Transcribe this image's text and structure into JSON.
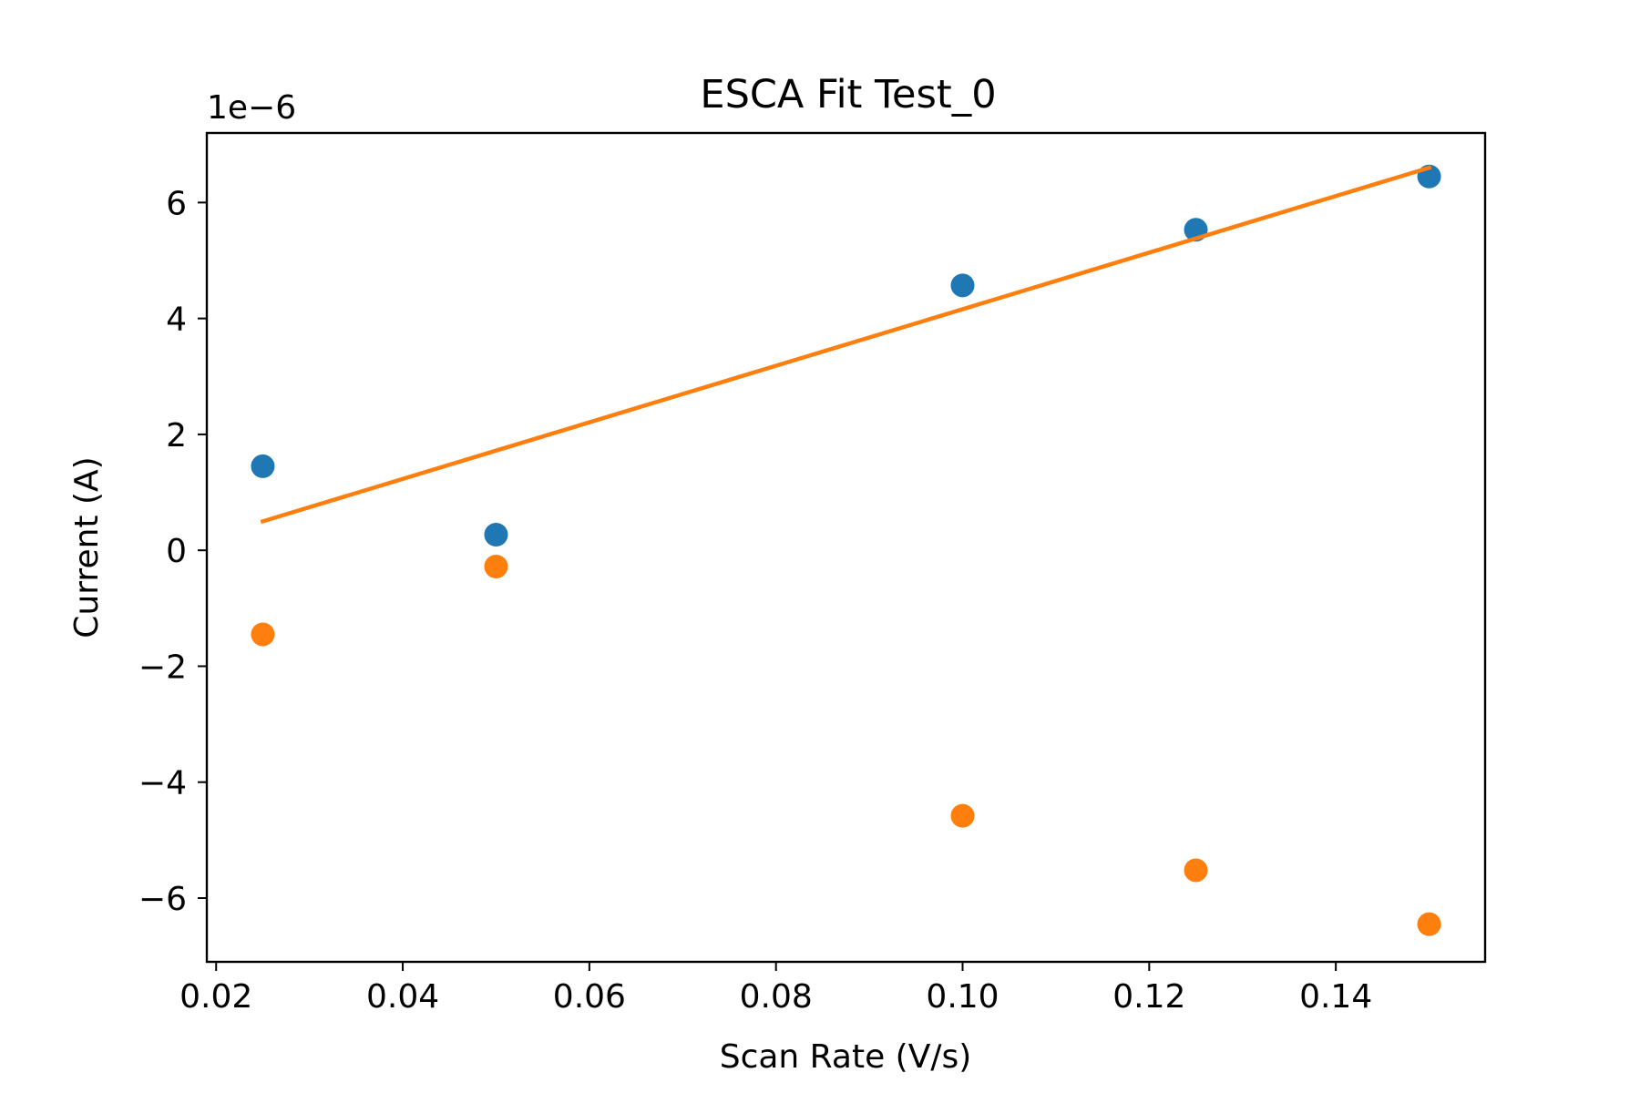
{
  "chart_data": {
    "type": "scatter",
    "title": "ESCA Fit Test_0",
    "xlabel": "Scan Rate (V/s)",
    "ylabel": "Current (A)",
    "y_offset_label": "1e−6",
    "xlim": [
      0.019,
      0.156
    ],
    "ylim": [
      -7.1,
      7.2
    ],
    "x_ticks": [
      0.02,
      0.04,
      0.06,
      0.08,
      0.1,
      0.12,
      0.14
    ],
    "x_tick_labels": [
      "0.02",
      "0.04",
      "0.06",
      "0.08",
      "0.10",
      "0.12",
      "0.14"
    ],
    "y_ticks": [
      -6,
      -4,
      -2,
      0,
      2,
      4,
      6
    ],
    "y_tick_labels": [
      "−6",
      "−4",
      "−2",
      "0",
      "2",
      "4",
      "6"
    ],
    "grid": false,
    "series": [
      {
        "kind": "scatter",
        "color": "#1f77b4",
        "x": [
          0.025,
          0.05,
          0.1,
          0.125,
          0.15
        ],
        "y": [
          1.45,
          0.27,
          4.57,
          5.53,
          6.45
        ]
      },
      {
        "kind": "scatter",
        "color": "#ff7f0e",
        "x": [
          0.025,
          0.05,
          0.1,
          0.125,
          0.15
        ],
        "y": [
          -1.45,
          -0.28,
          -4.58,
          -5.52,
          -6.45
        ]
      },
      {
        "kind": "line",
        "color": "#ff7f0e",
        "x": [
          0.025,
          0.15
        ],
        "y": [
          0.5,
          6.6
        ]
      }
    ]
  }
}
